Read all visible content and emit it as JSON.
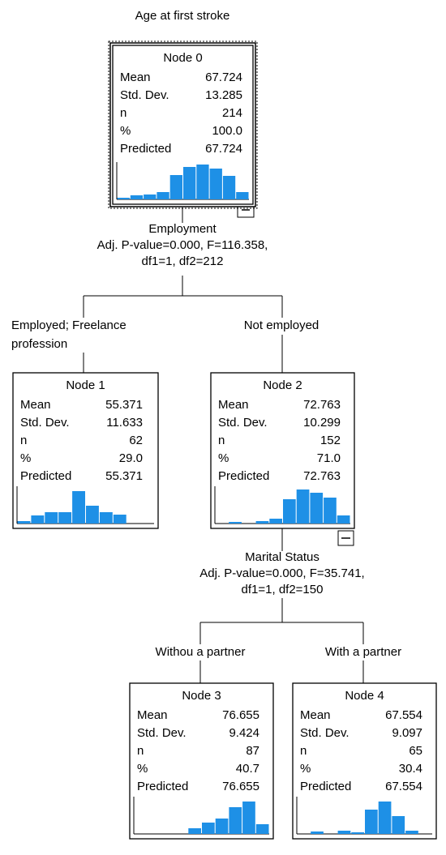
{
  "title": "Age at first stroke",
  "nodes": [
    {
      "label": "Node 0",
      "stats": [
        [
          "Mean",
          "67.724"
        ],
        [
          "Std. Dev.",
          "13.285"
        ],
        [
          "n",
          "214"
        ],
        [
          "%",
          "100.0"
        ],
        [
          "Predicted",
          "67.724"
        ]
      ],
      "histogram": [
        2,
        5,
        6,
        9,
        30,
        40,
        43,
        38,
        29,
        9
      ]
    },
    {
      "label": "Node 1",
      "stats": [
        [
          "Mean",
          "55.371"
        ],
        [
          "Std. Dev.",
          "11.633"
        ],
        [
          "n",
          "62"
        ],
        [
          "%",
          "29.0"
        ],
        [
          "Predicted",
          "55.371"
        ]
      ],
      "histogram": [
        3,
        10,
        14,
        14,
        40,
        22,
        14,
        11,
        0,
        0
      ]
    },
    {
      "label": "Node 2",
      "stats": [
        [
          "Mean",
          "72.763"
        ],
        [
          "Std. Dev.",
          "10.299"
        ],
        [
          "n",
          "152"
        ],
        [
          "%",
          "71.0"
        ],
        [
          "Predicted",
          "72.763"
        ]
      ],
      "histogram": [
        0,
        2,
        0,
        3,
        6,
        30,
        42,
        38,
        32,
        10
      ]
    },
    {
      "label": "Node 3",
      "stats": [
        [
          "Mean",
          "76.655"
        ],
        [
          "Std. Dev.",
          "9.424"
        ],
        [
          "n",
          "87"
        ],
        [
          "%",
          "40.7"
        ],
        [
          "Predicted",
          "76.655"
        ]
      ],
      "histogram": [
        0,
        0,
        0,
        0,
        7,
        14,
        19,
        33,
        40,
        12
      ]
    },
    {
      "label": "Node 4",
      "stats": [
        [
          "Mean",
          "67.554"
        ],
        [
          "Std. Dev.",
          "9.097"
        ],
        [
          "n",
          "65"
        ],
        [
          "%",
          "30.4"
        ],
        [
          "Predicted",
          "67.554"
        ]
      ],
      "histogram": [
        0,
        3,
        0,
        4,
        2,
        30,
        40,
        22,
        4,
        0
      ]
    }
  ],
  "splits": [
    {
      "variable": "Employment",
      "test": "Adj. P-value=0.000, F=116.358,",
      "df": "df1=1, df2=212"
    },
    {
      "variable": "Marital Status",
      "test": "Adj. P-value=0.000, F=35.741,",
      "df": "df1=1, df2=150"
    }
  ],
  "branches": [
    [
      "Employed; Freelance",
      "profession"
    ],
    [
      "Not employed"
    ],
    [
      "Withou a partner"
    ],
    [
      "With a partner"
    ]
  ]
}
